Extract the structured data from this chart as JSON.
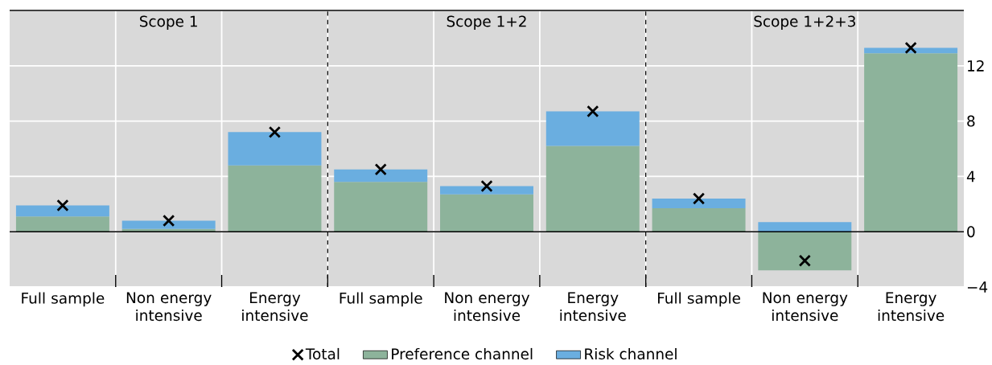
{
  "chart_data": {
    "type": "bar",
    "stacked": true,
    "categories": [
      "Full sample",
      "Non energy intensive",
      "Energy intensive",
      "Full sample",
      "Non energy intensive",
      "Energy intensive",
      "Full sample",
      "Non energy intensive",
      "Energy intensive"
    ],
    "series": [
      {
        "name": "Preference channel",
        "color": "#8db39b",
        "values": [
          1.1,
          0.2,
          4.8,
          3.6,
          2.7,
          6.2,
          1.7,
          -2.8,
          12.9
        ]
      },
      {
        "name": "Risk channel",
        "color": "#6aaee0",
        "values": [
          0.8,
          0.6,
          2.4,
          0.9,
          0.6,
          2.5,
          0.7,
          0.7,
          0.4
        ]
      },
      {
        "name": "Total",
        "type": "scatter",
        "marker": "cross",
        "color": "#000000",
        "values": [
          1.9,
          0.8,
          7.2,
          4.5,
          3.3,
          8.7,
          2.4,
          -2.1,
          13.3
        ]
      }
    ],
    "ylim": [
      -4,
      16
    ],
    "yticks": [
      {
        "value": -4,
        "label": "−4"
      },
      0,
      4,
      8,
      12,
      {
        "value": 16,
        "label": null
      }
    ],
    "grid": true,
    "legend": "bottom",
    "annotations": [
      "Scope 1",
      "Scope 1+2",
      "Scope 1+2+3"
    ]
  }
}
